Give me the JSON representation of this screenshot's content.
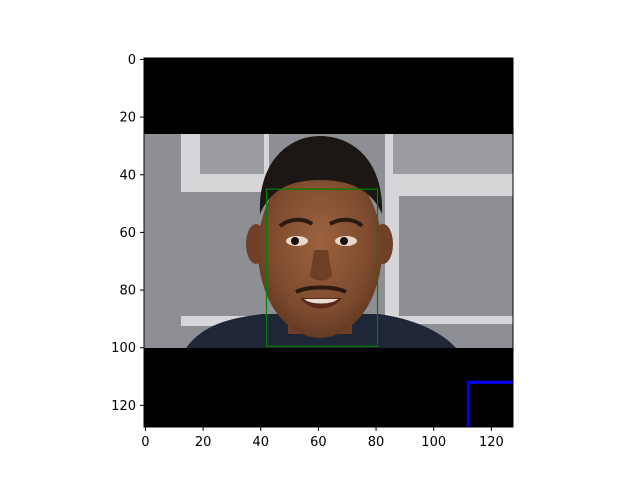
{
  "chart_data": {
    "type": "image",
    "title": "",
    "xlabel": "",
    "ylabel": "",
    "xlim": [
      0,
      128
    ],
    "ylim": [
      128,
      0
    ],
    "x_ticks": [
      0,
      20,
      40,
      60,
      80,
      100,
      120
    ],
    "y_ticks": [
      0,
      20,
      40,
      60,
      80,
      100,
      120
    ],
    "image_content": "face photo",
    "photo_rows": [
      26.5,
      100.5
    ],
    "boxes": [
      {
        "name": "face-box",
        "color": "#008000",
        "x0": 42,
        "y0": 45,
        "x1": 80.5,
        "y1": 99.5
      },
      {
        "name": "corner-box",
        "color": "#0000ff",
        "x0": 112,
        "y0": 112,
        "x1": 128,
        "y1": 128
      }
    ]
  },
  "colors": {
    "padding": "#000000",
    "backdrop": "#8d8f94",
    "panel_light": "#d9d9db",
    "skin": "#8a5232",
    "shirt": "#1e2638",
    "hair": "#1c1714"
  }
}
